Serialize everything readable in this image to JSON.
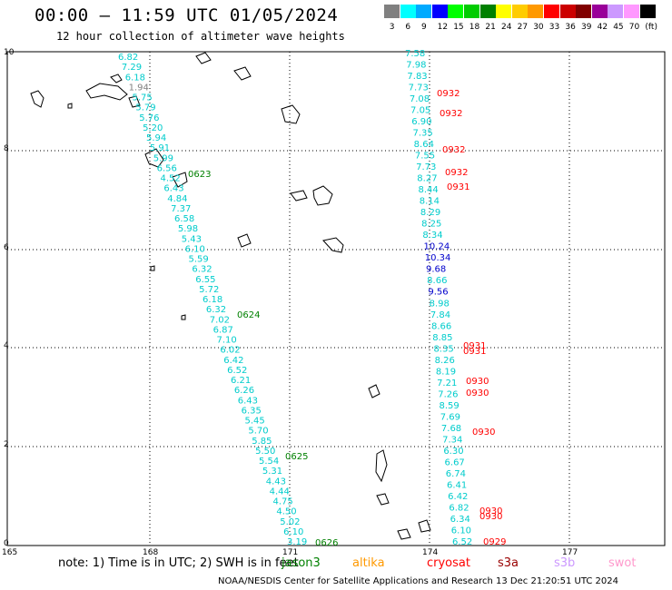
{
  "title": "00:00 – 11:59 UTC 01/05/2024",
  "subtitle": "12 hour collection of altimeter wave heights",
  "note": "note: 1) Time is in UTC; 2) SWH is in feet",
  "footer": "NOAA/NESDIS Center for Satellite Applications and Research    13 Dec 21:20:51 UTC 2024",
  "satellites": [
    {
      "name": "jason3",
      "color": "#008000"
    },
    {
      "name": "altika",
      "color": "#ff9900"
    },
    {
      "name": "cryosat",
      "color": "#ff0000"
    },
    {
      "name": "s3a",
      "color": "#990000"
    },
    {
      "name": "s3b",
      "color": "#cc99ff"
    },
    {
      "name": "swot",
      "color": "#ff99cc"
    }
  ],
  "colorbar": {
    "colors": [
      "#808080",
      "#00ffff",
      "#00aaff",
      "#0000ff",
      "#00ff00",
      "#00cc00",
      "#008000",
      "#ffff00",
      "#ffcc00",
      "#ff9900",
      "#ff0000",
      "#cc0000",
      "#800000",
      "#990099",
      "#cc99ff",
      "#ff99ff",
      "#000000"
    ],
    "labels": [
      "3",
      "6",
      "9",
      "12",
      "15",
      "18",
      "21",
      "24",
      "27",
      "30",
      "33",
      "36",
      "39",
      "42",
      "45",
      "70",
      "(ft)"
    ]
  },
  "axes": {
    "x_ticks": [
      "165",
      "168",
      "171",
      "174",
      "177"
    ],
    "y_ticks": [
      "0",
      "2",
      "4",
      "6",
      "8",
      "10"
    ]
  },
  "track1": {
    "values": [
      {
        "v": "6.82",
        "c": "#00cccc"
      },
      {
        "v": "7.29",
        "c": "#00cccc"
      },
      {
        "v": "6.18",
        "c": "#00cccc"
      },
      {
        "v": "1.94",
        "c": "#808080"
      },
      {
        "v": "5.75",
        "c": "#00cccc"
      },
      {
        "v": "5.79",
        "c": "#00cccc"
      },
      {
        "v": "5.76",
        "c": "#00cccc"
      },
      {
        "v": "5.20",
        "c": "#00cccc"
      },
      {
        "v": "5.94",
        "c": "#00cccc"
      },
      {
        "v": "5.91",
        "c": "#00cccc"
      },
      {
        "v": "5.99",
        "c": "#00cccc"
      },
      {
        "v": "6.56",
        "c": "#00cccc"
      },
      {
        "v": "4.52",
        "c": "#00cccc"
      },
      {
        "v": "6.43",
        "c": "#00cccc"
      },
      {
        "v": "4.84",
        "c": "#00cccc"
      },
      {
        "v": "7.37",
        "c": "#00cccc"
      },
      {
        "v": "6.58",
        "c": "#00cccc"
      },
      {
        "v": "5.98",
        "c": "#00cccc"
      },
      {
        "v": "5.43",
        "c": "#00cccc"
      },
      {
        "v": "6.10",
        "c": "#00cccc"
      },
      {
        "v": "5.59",
        "c": "#00cccc"
      },
      {
        "v": "6.32",
        "c": "#00cccc"
      },
      {
        "v": "6.55",
        "c": "#00cccc"
      },
      {
        "v": "5.72",
        "c": "#00cccc"
      },
      {
        "v": "6.18",
        "c": "#00cccc"
      },
      {
        "v": "6.32",
        "c": "#00cccc"
      },
      {
        "v": "7.02",
        "c": "#00cccc"
      },
      {
        "v": "6.87",
        "c": "#00cccc"
      },
      {
        "v": "7.10",
        "c": "#00cccc"
      },
      {
        "v": "6.02",
        "c": "#00cccc"
      },
      {
        "v": "6.42",
        "c": "#00cccc"
      },
      {
        "v": "6.52",
        "c": "#00cccc"
      },
      {
        "v": "6.21",
        "c": "#00cccc"
      },
      {
        "v": "6.26",
        "c": "#00cccc"
      },
      {
        "v": "6.43",
        "c": "#00cccc"
      },
      {
        "v": "6.35",
        "c": "#00cccc"
      },
      {
        "v": "5.45",
        "c": "#00cccc"
      },
      {
        "v": "5.70",
        "c": "#00cccc"
      },
      {
        "v": "5.85",
        "c": "#00cccc"
      },
      {
        "v": "5.50",
        "c": "#00cccc"
      },
      {
        "v": "5.54",
        "c": "#00cccc"
      },
      {
        "v": "5.31",
        "c": "#00cccc"
      },
      {
        "v": "4.43",
        "c": "#00cccc"
      },
      {
        "v": "4.44",
        "c": "#00cccc"
      },
      {
        "v": "4.75",
        "c": "#00cccc"
      },
      {
        "v": "4.50",
        "c": "#00cccc"
      },
      {
        "v": "5.02",
        "c": "#00cccc"
      },
      {
        "v": "6.10",
        "c": "#00cccc"
      },
      {
        "v": "3.19",
        "c": "#00cccc"
      }
    ],
    "times": [
      {
        "t": "0623",
        "c": "#008000"
      },
      {
        "t": "0624",
        "c": "#008000"
      },
      {
        "t": "0625",
        "c": "#008000"
      },
      {
        "t": "0626",
        "c": "#008000"
      }
    ]
  },
  "track2": {
    "values": [
      {
        "v": "7.58",
        "c": "#00cccc"
      },
      {
        "v": "7.98",
        "c": "#00cccc"
      },
      {
        "v": "7.83",
        "c": "#00cccc"
      },
      {
        "v": "7.73",
        "c": "#00cccc"
      },
      {
        "v": "7.08",
        "c": "#00cccc"
      },
      {
        "v": "7.05",
        "c": "#00cccc"
      },
      {
        "v": "6.90",
        "c": "#00cccc"
      },
      {
        "v": "7.35",
        "c": "#00cccc"
      },
      {
        "v": "8.64",
        "c": "#00cccc"
      },
      {
        "v": "7.55",
        "c": "#00cccc"
      },
      {
        "v": "7.73",
        "c": "#00cccc"
      },
      {
        "v": "8.27",
        "c": "#00cccc"
      },
      {
        "v": "8.44",
        "c": "#00cccc"
      },
      {
        "v": "8.14",
        "c": "#00cccc"
      },
      {
        "v": "8.29",
        "c": "#00cccc"
      },
      {
        "v": "8.25",
        "c": "#00cccc"
      },
      {
        "v": "8.34",
        "c": "#00cccc"
      },
      {
        "v": "10.24",
        "c": "#0000cc"
      },
      {
        "v": "10.34",
        "c": "#0000cc"
      },
      {
        "v": "9.68",
        "c": "#0000cc"
      },
      {
        "v": "8.66",
        "c": "#00cccc"
      },
      {
        "v": "9.56",
        "c": "#0000cc"
      },
      {
        "v": "8.98",
        "c": "#00cccc"
      },
      {
        "v": "7.84",
        "c": "#00cccc"
      },
      {
        "v": "8.66",
        "c": "#00cccc"
      },
      {
        "v": "8.85",
        "c": "#00cccc"
      },
      {
        "v": "8.35",
        "c": "#00cccc"
      },
      {
        "v": "8.26",
        "c": "#00cccc"
      },
      {
        "v": "8.19",
        "c": "#00cccc"
      },
      {
        "v": "7.21",
        "c": "#00cccc"
      },
      {
        "v": "7.26",
        "c": "#00cccc"
      },
      {
        "v": "8.59",
        "c": "#00cccc"
      },
      {
        "v": "7.69",
        "c": "#00cccc"
      },
      {
        "v": "7.68",
        "c": "#00cccc"
      },
      {
        "v": "7.34",
        "c": "#00cccc"
      },
      {
        "v": "6.30",
        "c": "#00cccc"
      },
      {
        "v": "6.67",
        "c": "#00cccc"
      },
      {
        "v": "6.74",
        "c": "#00cccc"
      },
      {
        "v": "6.41",
        "c": "#00cccc"
      },
      {
        "v": "6.42",
        "c": "#00cccc"
      },
      {
        "v": "6.82",
        "c": "#00cccc"
      },
      {
        "v": "6.34",
        "c": "#00cccc"
      },
      {
        "v": "6.10",
        "c": "#00cccc"
      },
      {
        "v": "6.52",
        "c": "#00cccc"
      }
    ],
    "times": [
      {
        "t": "0932",
        "c": "#ff0000"
      },
      {
        "t": "0932",
        "c": "#ff0000"
      },
      {
        "t": "0932",
        "c": "#ff0000"
      },
      {
        "t": "0932",
        "c": "#ff0000"
      },
      {
        "t": "0931",
        "c": "#ff0000"
      },
      {
        "t": "0931",
        "c": "#ff0000"
      },
      {
        "t": "0931",
        "c": "#ff0000"
      },
      {
        "t": "0930",
        "c": "#ff0000"
      },
      {
        "t": "0930",
        "c": "#ff0000"
      },
      {
        "t": "0930",
        "c": "#ff0000"
      },
      {
        "t": "0930",
        "c": "#ff0000"
      },
      {
        "t": "0930",
        "c": "#ff0000"
      },
      {
        "t": "0929",
        "c": "#ff0000"
      }
    ]
  }
}
